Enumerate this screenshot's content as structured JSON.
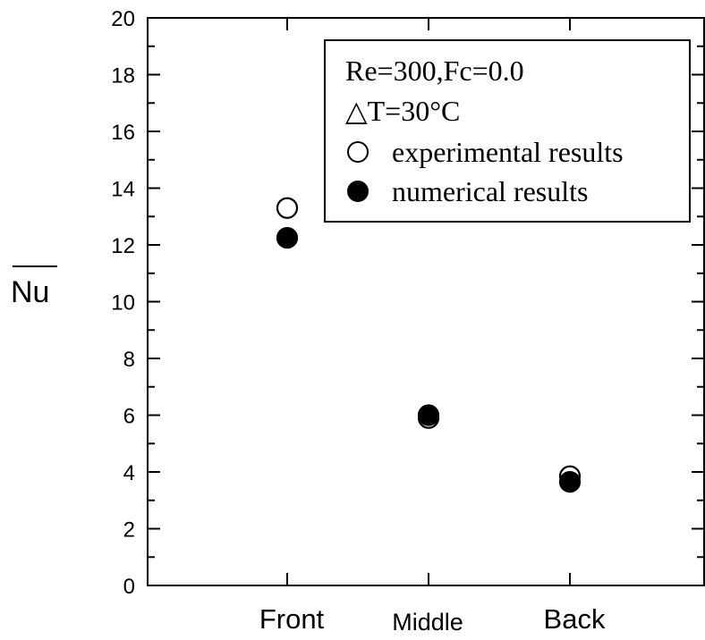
{
  "chart_data": {
    "type": "scatter",
    "ylabel": "Nu",
    "ylabel_overline": true,
    "ylim": [
      0,
      20
    ],
    "y_major_ticks": [
      0,
      2,
      4,
      6,
      8,
      10,
      12,
      14,
      16,
      18,
      20
    ],
    "y_tick_labels": [
      "0",
      "2",
      "4",
      "6",
      "8",
      "10",
      "12",
      "14",
      "16",
      "18",
      "20"
    ],
    "categories": [
      "Front",
      "Middle",
      "Back"
    ],
    "grid": false,
    "legend_placement": "top-right",
    "legend": {
      "conditions": [
        "Re=300,Fc=0.0",
        "△T=30°C"
      ],
      "entries": [
        "experimental results",
        "numerical results"
      ]
    },
    "series": [
      {
        "name": "experimental results",
        "marker": "open-circle",
        "color": "#000000",
        "values": [
          13.3,
          5.9,
          3.85
        ]
      },
      {
        "name": "numerical results",
        "marker": "filled-circle",
        "color": "#000000",
        "values": [
          12.25,
          6.0,
          3.65
        ]
      }
    ]
  }
}
